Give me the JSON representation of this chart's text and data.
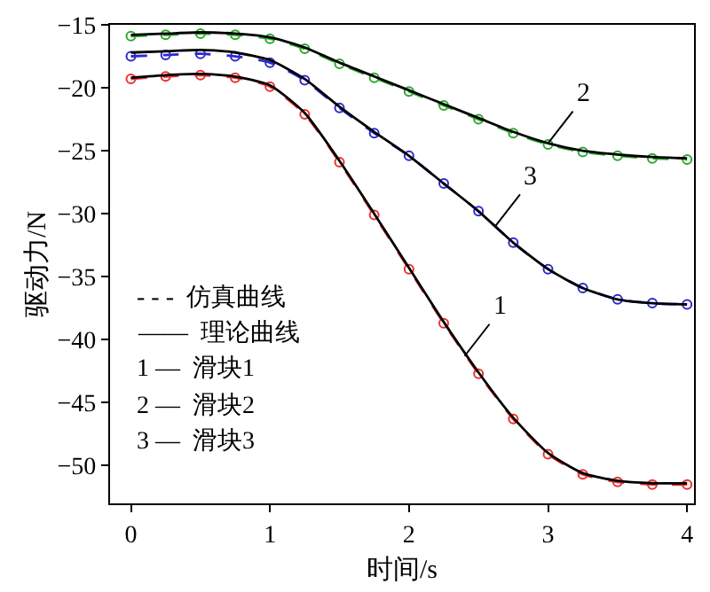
{
  "chart_data": {
    "type": "line",
    "xlabel": "时间/s",
    "ylabel": "驱动力/N",
    "x": [
      0,
      0.25,
      0.5,
      0.75,
      1,
      1.25,
      1.5,
      1.75,
      2,
      2.25,
      2.5,
      2.75,
      3,
      3.25,
      3.5,
      3.75,
      4
    ],
    "series": [
      {
        "color": "#e8322e",
        "line_style": "dashed",
        "marker": "circle",
        "values": [
          -19.3,
          -19.1,
          -19.0,
          -19.2,
          -19.9,
          -22.1,
          -25.9,
          -30.1,
          -34.4,
          -38.7,
          -42.7,
          -46.3,
          -49.1,
          -50.7,
          -51.3,
          -51.5,
          -51.5
        ]
      },
      {
        "color": "#000000",
        "line_style": "solid",
        "marker": "none",
        "values": [
          -19.2,
          -19.0,
          -18.9,
          -19.1,
          -19.8,
          -22.0,
          -25.8,
          -30.0,
          -34.3,
          -38.6,
          -42.6,
          -46.2,
          -49.0,
          -50.6,
          -51.2,
          -51.4,
          -51.4
        ]
      },
      {
        "color": "#2a2ad0",
        "line_style": "dashed",
        "marker": "circle",
        "values": [
          -17.5,
          -17.4,
          -17.3,
          -17.5,
          -18.0,
          -19.4,
          -21.6,
          -23.6,
          -25.4,
          -27.6,
          -29.8,
          -32.3,
          -34.4,
          -35.9,
          -36.8,
          -37.1,
          -37.2
        ]
      },
      {
        "color": "#000000",
        "line_style": "solid",
        "marker": "none",
        "values": [
          -17.2,
          -17.1,
          -17.0,
          -17.2,
          -17.8,
          -19.3,
          -21.5,
          -23.5,
          -25.4,
          -27.6,
          -29.8,
          -32.3,
          -34.4,
          -35.9,
          -36.8,
          -37.1,
          -37.2
        ]
      },
      {
        "color": "#2ea82e",
        "line_style": "dashed",
        "marker": "circle",
        "values": [
          -15.9,
          -15.8,
          -15.7,
          -15.8,
          -16.1,
          -16.9,
          -18.1,
          -19.2,
          -20.3,
          -21.4,
          -22.5,
          -23.6,
          -24.5,
          -25.1,
          -25.4,
          -25.6,
          -25.7
        ]
      },
      {
        "color": "#000000",
        "line_style": "solid",
        "marker": "none",
        "values": [
          -15.8,
          -15.7,
          -15.6,
          -15.7,
          -16.0,
          -16.8,
          -18.0,
          -19.1,
          -20.2,
          -21.3,
          -22.4,
          -23.5,
          -24.4,
          -25.0,
          -25.3,
          -25.5,
          -25.6
        ]
      }
    ],
    "xlim": [
      -0.15,
      4.05
    ],
    "xticks": [
      0,
      1,
      2,
      3,
      4
    ],
    "ylim": [
      -53,
      -15
    ],
    "yticks": [
      -15,
      -20,
      -25,
      -30,
      -35,
      -40,
      -45,
      -50
    ],
    "annotations": [
      {
        "text": "1",
        "x": 2.4,
        "y": -41.3
      },
      {
        "text": "2",
        "x": 3.0,
        "y": -24.4
      },
      {
        "text": "3",
        "x": 2.62,
        "y": -31.0
      },
      "- - -  仿真曲线",
      "——  理论曲线",
      "1 —  滑块1",
      "2 —  滑块2",
      "3 —  滑块3"
    ]
  }
}
